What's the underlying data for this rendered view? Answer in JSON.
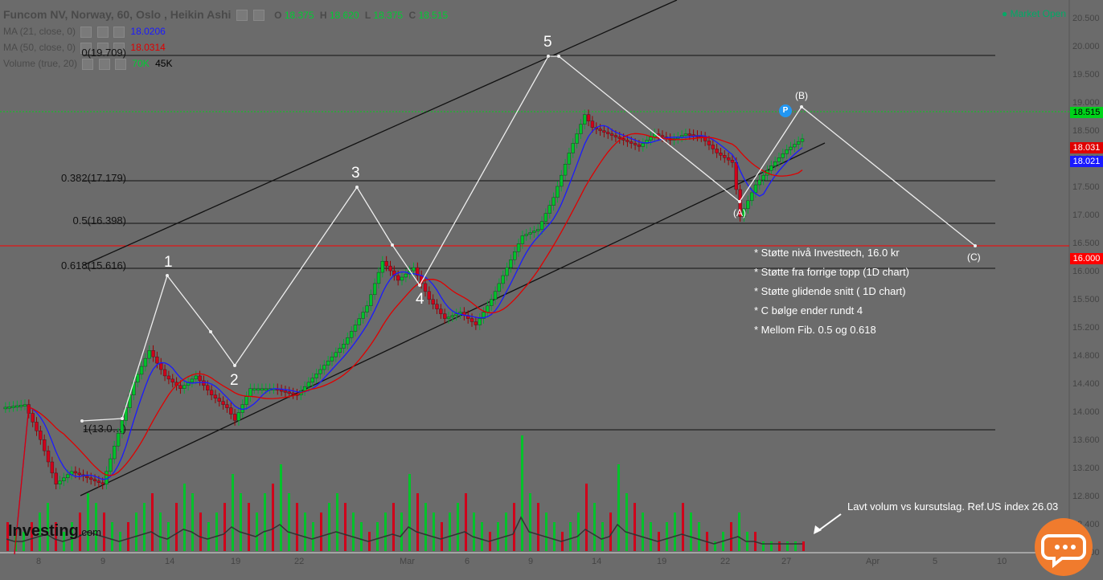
{
  "header": {
    "title": "Funcom NV, Norway, 60, Oslo , Heikin Ashi",
    "ohlc": [
      {
        "k": "O",
        "v": "18.375"
      },
      {
        "k": "H",
        "v": "18.620"
      },
      {
        "k": "L",
        "v": "18.375"
      },
      {
        "k": "C",
        "v": "18.515"
      }
    ],
    "ma21_label": "MA (21, close, 0)",
    "ma21_value": "18.0206",
    "ma50_label": "MA (50, close, 0)",
    "ma50_value": "18.0314",
    "volume_label": "Volume (true, 20)",
    "volume_v1": "70K",
    "volume_v2": "45K",
    "market_status": "● Market Open"
  },
  "colors": {
    "up": "#00c22a",
    "down": "#d0001a",
    "ma21": "#1a1aff",
    "ma50": "#e00000",
    "current_price": "#00d21a",
    "support": "#ff0000"
  },
  "price_axis": {
    "ticks": [
      "20.500",
      "20.000",
      "19.500",
      "19.000",
      "18.500",
      "18.000",
      "17.500",
      "17.000",
      "16.500",
      "16.000",
      "15.500",
      "15.200",
      "14.800",
      "14.400",
      "14.000",
      "13.600",
      "13.200",
      "12.800",
      "12.400",
      "12.000"
    ],
    "labels": [
      {
        "text": "18.515",
        "color": "#00d21a",
        "text_color": "#000"
      },
      {
        "text": "18.031",
        "color": "#e00000",
        "text_color": "#fff"
      },
      {
        "text": "18.021",
        "color": "#1a1aff",
        "text_color": "#fff"
      },
      {
        "text": "16.000",
        "color": "#ff0000",
        "text_color": "#fff"
      }
    ]
  },
  "date_axis": {
    "ticks": [
      "8",
      "9",
      "14",
      "19",
      "22",
      "Mar",
      "6",
      "9",
      "14",
      "19",
      "22",
      "27",
      "Apr",
      "5",
      "10"
    ]
  },
  "fib_levels": [
    {
      "label": "0(19.709)",
      "price": 19.709
    },
    {
      "label": "0.382(17.179)",
      "price": 17.179
    },
    {
      "label": "0.5(16.398)",
      "price": 16.398
    },
    {
      "label": "0.618(15.616)",
      "price": 15.616
    },
    {
      "label": "1(13.0…)",
      "price": 13.08
    }
  ],
  "waves": [
    "1",
    "2",
    "3",
    "4",
    "5"
  ],
  "waves_abc": [
    "(A)",
    "(B)",
    "(C)"
  ],
  "notes": [
    "* Støtte nivå Investtech, 16.0 kr",
    "* Støtte fra forrige topp (1D chart)",
    "* Støtte glidende snitt ( 1D chart)",
    "* C bølge ender rundt 4",
    "* Mellom Fib. 0.5 og 0.618"
  ],
  "volume_note": "Lavt volum vs kursutslag. Ref.US index 26.03",
  "logo": {
    "main": "Investing",
    "suffix": ".com"
  },
  "p_marker": "P",
  "chart_data": {
    "type": "candlestick",
    "title": "Funcom NV, Norway, 60, Oslo , Heikin Ashi",
    "ylim": [
      12.0,
      20.7
    ],
    "series": [
      {
        "name": "MA (21, close, 0)",
        "last": 18.0206
      },
      {
        "name": "MA (50, close, 0)",
        "last": 18.0314
      }
    ],
    "price_path": [
      [
        0,
        14.3
      ],
      [
        6,
        14.35
      ],
      [
        10,
        13.8
      ],
      [
        14,
        13.1
      ],
      [
        18,
        13.3
      ],
      [
        22,
        13.2
      ],
      [
        26,
        13.1
      ],
      [
        30,
        13.9
      ],
      [
        34,
        14.7
      ],
      [
        38,
        15.2
      ],
      [
        42,
        14.8
      ],
      [
        46,
        14.6
      ],
      [
        50,
        14.8
      ],
      [
        54,
        14.5
      ],
      [
        58,
        14.3
      ],
      [
        60,
        14.1
      ],
      [
        64,
        14.6
      ],
      [
        70,
        14.6
      ],
      [
        76,
        14.5
      ],
      [
        82,
        14.9
      ],
      [
        88,
        15.3
      ],
      [
        94,
        15.9
      ],
      [
        98,
        16.6
      ],
      [
        102,
        16.3
      ],
      [
        106,
        16.5
      ],
      [
        110,
        16.0
      ],
      [
        114,
        15.7
      ],
      [
        118,
        15.8
      ],
      [
        122,
        15.6
      ],
      [
        126,
        16.0
      ],
      [
        130,
        16.5
      ],
      [
        134,
        17.0
      ],
      [
        138,
        17.1
      ],
      [
        142,
        17.6
      ],
      [
        146,
        18.3
      ],
      [
        150,
        18.9
      ],
      [
        152,
        18.7
      ],
      [
        156,
        18.6
      ],
      [
        160,
        18.5
      ],
      [
        164,
        18.4
      ],
      [
        168,
        18.6
      ],
      [
        172,
        18.5
      ],
      [
        176,
        18.6
      ],
      [
        180,
        18.55
      ],
      [
        184,
        18.3
      ],
      [
        188,
        18.15
      ],
      [
        190,
        17.3
      ],
      [
        194,
        17.8
      ],
      [
        198,
        18.1
      ],
      [
        202,
        18.35
      ],
      [
        206,
        18.52
      ]
    ],
    "volume": [
      3,
      2,
      2,
      3,
      4,
      5,
      3,
      2,
      3,
      4,
      6,
      5,
      4,
      3,
      2,
      3,
      4,
      5,
      6,
      4,
      3,
      5,
      7,
      6,
      4,
      3,
      4,
      5,
      8,
      6,
      5,
      4,
      6,
      7,
      9,
      6,
      5,
      4,
      3,
      4,
      5,
      6,
      5,
      4,
      3,
      2,
      3,
      4,
      5,
      4,
      8,
      6,
      5,
      4,
      3,
      4,
      5,
      6,
      4,
      3,
      2,
      3,
      4,
      5,
      12,
      6,
      5,
      4,
      3,
      2,
      3,
      4,
      7,
      5,
      3,
      4,
      9,
      6,
      5,
      4,
      3,
      2,
      3,
      4,
      5,
      4,
      3,
      2,
      1,
      2,
      3,
      4,
      2,
      2,
      1,
      1,
      1,
      1,
      1,
      1
    ]
  }
}
